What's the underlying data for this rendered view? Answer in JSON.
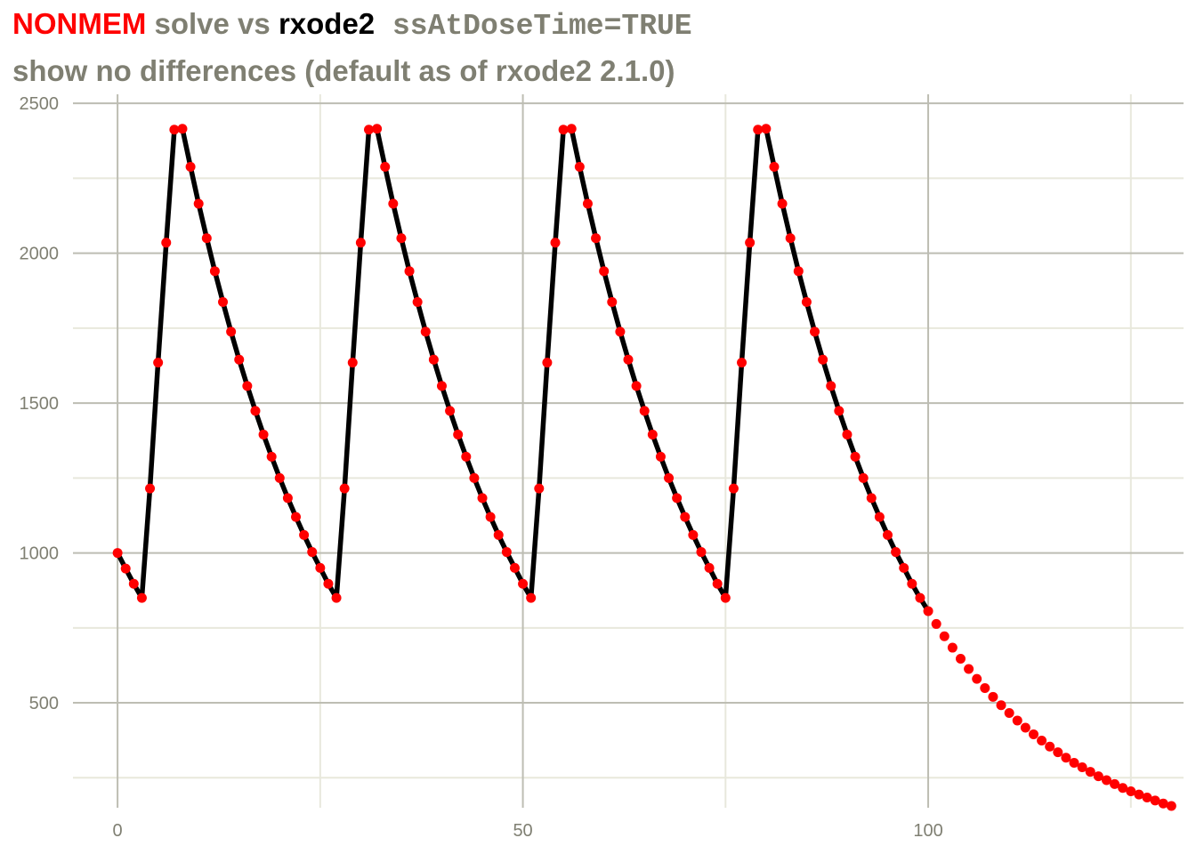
{
  "title": {
    "seg_nonmem": "NONMEM",
    "seg_solve_vs": " solve vs ",
    "seg_rxode2": "rxode2",
    "seg_code": " ssAtDoseTime=TRUE",
    "subtitle": "show no differences (default as of rxode2 2.1.0)"
  },
  "colors": {
    "nonmem": "#ff0000",
    "solve_vs": "#7f7f72",
    "rxode2": "#000000",
    "code": "#7f7f72",
    "grid_major": "#bdbdb3",
    "grid_minor": "#e8e8dc",
    "axis_text": "#7f7f72"
  },
  "chart_data": {
    "type": "line",
    "xlim": [
      -5.5,
      131.5
    ],
    "ylim": [
      150,
      2530
    ],
    "x_ticks": [
      0,
      50,
      100
    ],
    "x_tick_labels": [
      "0",
      "50",
      "100"
    ],
    "y_ticks": [
      500,
      1000,
      1500,
      2000,
      2500
    ],
    "y_tick_labels": [
      "500",
      "1000",
      "1500",
      "2000",
      "2500"
    ],
    "x_minor_ticks": [
      25,
      75,
      125
    ],
    "y_minor_ticks": [
      250,
      750,
      1250,
      1750,
      2250
    ],
    "grid": true,
    "series": [
      {
        "color": "#000000",
        "style": "line",
        "x": [
          0,
          1,
          2,
          3,
          4,
          5,
          6,
          7,
          8,
          9,
          10,
          11,
          12,
          13,
          14,
          15,
          16,
          17,
          18,
          19,
          20,
          21,
          22,
          23,
          24,
          25,
          26,
          27,
          28,
          29,
          30,
          31,
          32,
          33,
          34,
          35,
          36,
          37,
          38,
          39,
          40,
          41,
          42,
          43,
          44,
          45,
          46,
          47,
          48,
          49,
          50,
          51,
          52,
          53,
          54,
          55,
          56,
          57,
          58,
          59,
          60,
          61,
          62,
          63,
          64,
          65,
          66,
          67,
          68,
          69,
          70,
          71,
          72,
          73,
          74,
          75,
          76,
          77,
          78,
          79,
          80,
          81,
          82,
          83,
          84,
          85,
          86,
          87,
          88,
          89,
          90,
          91,
          92,
          93,
          94,
          95,
          96,
          97,
          98,
          99,
          100
        ],
        "y": [
          1000,
          948,
          897,
          850,
          1215,
          1635,
          2035,
          2412,
          2415,
          2288,
          2165,
          2050,
          1940,
          1837,
          1738,
          1645,
          1557,
          1474,
          1395,
          1321,
          1250,
          1183,
          1120,
          1060,
          1003,
          950,
          897,
          850,
          1215,
          1635,
          2035,
          2412,
          2415,
          2288,
          2165,
          2050,
          1940,
          1837,
          1738,
          1645,
          1557,
          1474,
          1395,
          1321,
          1250,
          1183,
          1120,
          1060,
          1003,
          950,
          897,
          850,
          1215,
          1635,
          2035,
          2412,
          2415,
          2288,
          2165,
          2050,
          1940,
          1837,
          1738,
          1645,
          1557,
          1474,
          1395,
          1321,
          1250,
          1183,
          1120,
          1060,
          1003,
          950,
          897,
          850,
          1215,
          1635,
          2035,
          2412,
          2415,
          2288,
          2165,
          2050,
          1940,
          1837,
          1738,
          1645,
          1557,
          1474,
          1395,
          1321,
          1250,
          1183,
          1120,
          1060,
          1003,
          950,
          897,
          850,
          806
        ]
      },
      {
        "color": "#ff0000",
        "style": "points",
        "x": [
          0,
          1,
          2,
          3,
          4,
          5,
          6,
          7,
          8,
          9,
          10,
          11,
          12,
          13,
          14,
          15,
          16,
          17,
          18,
          19,
          20,
          21,
          22,
          23,
          24,
          25,
          26,
          27,
          28,
          29,
          30,
          31,
          32,
          33,
          34,
          35,
          36,
          37,
          38,
          39,
          40,
          41,
          42,
          43,
          44,
          45,
          46,
          47,
          48,
          49,
          50,
          51,
          52,
          53,
          54,
          55,
          56,
          57,
          58,
          59,
          60,
          61,
          62,
          63,
          64,
          65,
          66,
          67,
          68,
          69,
          70,
          71,
          72,
          73,
          74,
          75,
          76,
          77,
          78,
          79,
          80,
          81,
          82,
          83,
          84,
          85,
          86,
          87,
          88,
          89,
          90,
          91,
          92,
          93,
          94,
          95,
          96,
          97,
          98,
          99,
          100,
          101,
          102,
          103,
          104,
          105,
          106,
          107,
          108,
          109,
          110,
          111,
          112,
          113,
          114,
          115,
          116,
          117,
          118,
          119,
          120,
          121,
          122,
          123,
          124,
          125,
          126,
          127,
          128,
          129,
          130
        ],
        "y": [
          1000,
          948,
          897,
          850,
          1215,
          1635,
          2035,
          2412,
          2415,
          2288,
          2165,
          2050,
          1940,
          1837,
          1738,
          1645,
          1557,
          1474,
          1395,
          1321,
          1250,
          1183,
          1120,
          1060,
          1003,
          950,
          897,
          850,
          1215,
          1635,
          2035,
          2412,
          2415,
          2288,
          2165,
          2050,
          1940,
          1837,
          1738,
          1645,
          1557,
          1474,
          1395,
          1321,
          1250,
          1183,
          1120,
          1060,
          1003,
          950,
          897,
          850,
          1215,
          1635,
          2035,
          2412,
          2415,
          2288,
          2165,
          2050,
          1940,
          1837,
          1738,
          1645,
          1557,
          1474,
          1395,
          1321,
          1250,
          1183,
          1120,
          1060,
          1003,
          950,
          897,
          850,
          1215,
          1635,
          2035,
          2412,
          2415,
          2288,
          2165,
          2050,
          1940,
          1837,
          1738,
          1645,
          1557,
          1474,
          1395,
          1321,
          1250,
          1183,
          1120,
          1060,
          1003,
          950,
          897,
          850,
          806,
          763,
          722,
          684,
          647,
          613,
          580,
          549,
          520,
          492,
          466,
          441,
          417,
          395,
          374,
          354,
          335,
          317,
          300,
          285,
          270,
          255,
          242,
          229,
          216,
          205,
          194,
          184,
          174,
          164,
          156
        ]
      }
    ]
  }
}
